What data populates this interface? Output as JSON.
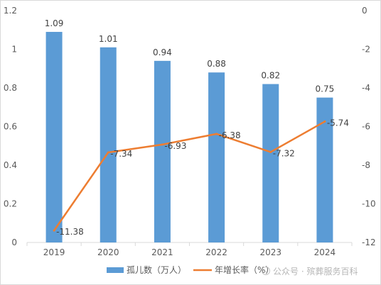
{
  "chart_data": {
    "type": "bar+line",
    "categories": [
      "2019",
      "2020",
      "2021",
      "2022",
      "2023",
      "2024"
    ],
    "series": [
      {
        "name": "孤儿数（万人）",
        "type": "bar",
        "axis": "left",
        "values": [
          1.09,
          1.01,
          0.94,
          0.88,
          0.82,
          0.75
        ],
        "labels": [
          "1.09",
          "1.01",
          "0.94",
          "0.88",
          "0.82",
          "0.75"
        ]
      },
      {
        "name": "年增长率（%）",
        "type": "line",
        "axis": "right",
        "values": [
          -11.38,
          -7.34,
          -6.93,
          -6.38,
          -7.32,
          -5.74
        ],
        "labels": [
          "-11.38",
          "-7.34",
          "-6.93",
          "-6.38",
          "-7.32",
          "-5.74"
        ]
      }
    ],
    "y_left": {
      "ylim": [
        0,
        1.2
      ],
      "ticks": [
        "0",
        "0.2",
        "0.4",
        "0.6",
        "0.8",
        "1",
        "1.2"
      ]
    },
    "y_right": {
      "ylim": [
        -12,
        0
      ],
      "ticks": [
        "-12",
        "-10",
        "-8",
        "-6",
        "-4",
        "-2",
        "0"
      ]
    },
    "grid": false,
    "legend": "bottom",
    "colors": {
      "bar": "#5b9bd5",
      "line": "#ed7d31",
      "axis": "#d9d9d9"
    }
  },
  "watermark": {
    "text": "公众号 · 殡葬服务百科",
    "icon": "wechat-icon"
  }
}
